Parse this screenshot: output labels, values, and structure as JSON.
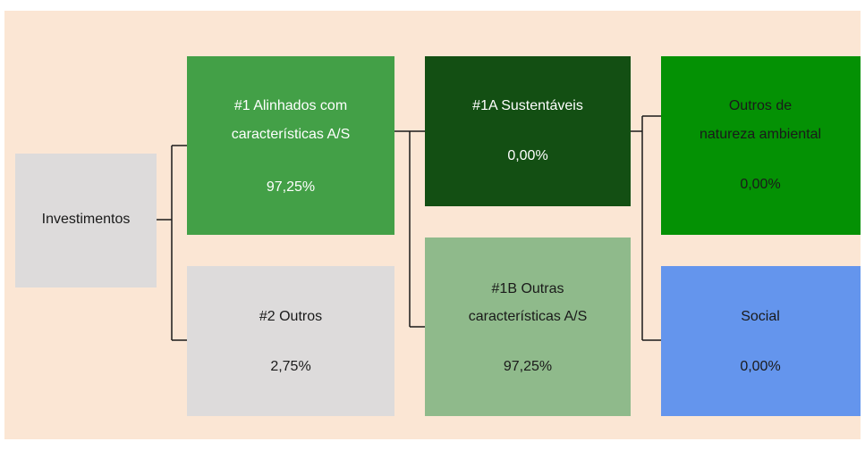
{
  "nodes": [
    {
      "lines": [
        "Investimentos"
      ],
      "value": null
    },
    {
      "lines": [
        "#1 Alinhados com",
        "características A/S"
      ],
      "value": "97,25%"
    },
    {
      "lines": [
        "#2 Outros"
      ],
      "value": "2,75%"
    },
    {
      "lines": [
        "#1A Sustentáveis"
      ],
      "value": "0,00%"
    },
    {
      "lines": [
        "#1B Outras",
        "características A/S"
      ],
      "value": "97,25%"
    },
    {
      "lines": [
        "Outros de",
        "natureza ambiental"
      ],
      "value": "0,00%"
    },
    {
      "lines": [
        "Social"
      ],
      "value": "0,00%"
    }
  ]
}
